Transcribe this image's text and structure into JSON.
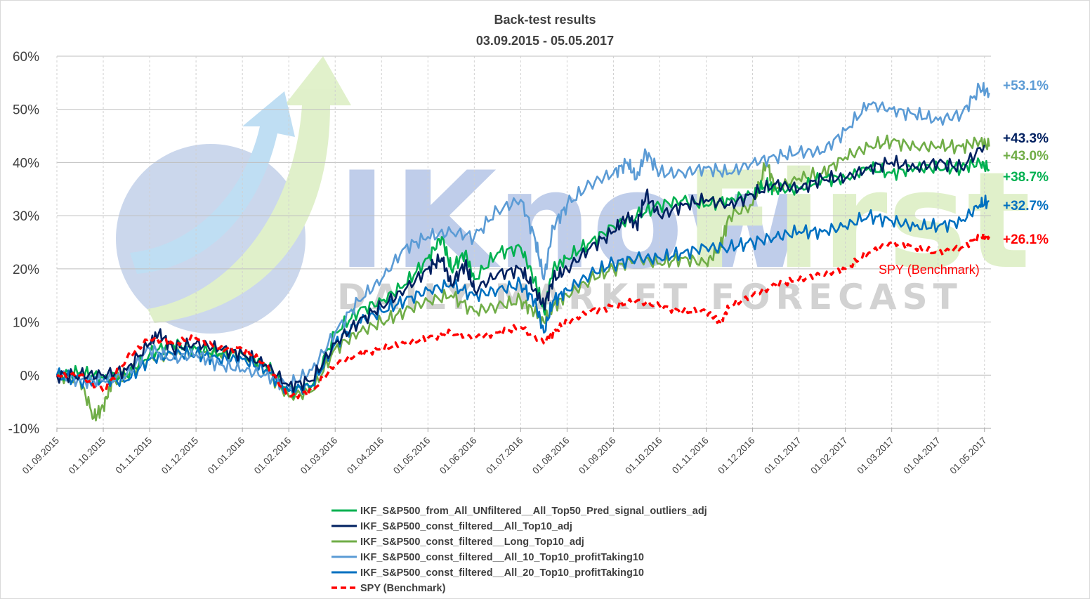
{
  "chart_data": {
    "type": "line",
    "title": "Back-test results",
    "subtitle": "03.09.2015 - 05.05.2017",
    "watermark": {
      "brand_a": "I",
      "brand_b": "Know",
      "brand_c": "First",
      "tagline": "DAILY MARKET FORECAST"
    },
    "x_tick_labels": [
      "01.09.2015",
      "01.10.2015",
      "01.11.2015",
      "01.12.2015",
      "01.01.2016",
      "01.02.2016",
      "01.03.2016",
      "01.04.2016",
      "01.05.2016",
      "01.06.2016",
      "01.07.2016",
      "01.08.2016",
      "01.09.2016",
      "01.10.2016",
      "01.11.2016",
      "01.12.2016",
      "01.01.2017",
      "01.02.2017",
      "01.03.2017",
      "01.04.2017",
      "01.05.2017"
    ],
    "x_range_months": [
      0,
      20.14
    ],
    "y_ticks": [
      -10,
      0,
      10,
      20,
      30,
      40,
      50,
      60
    ],
    "y_tick_labels": [
      "-10%",
      "0%",
      "10%",
      "20%",
      "30%",
      "40%",
      "50%",
      "60%"
    ],
    "ylim": [
      -10,
      60
    ],
    "grid": "horizontal+vertical-dashed",
    "legend_position": "bottom",
    "series": [
      {
        "name": "IKF_S&P500_from_All_UNfiltered__All_Top50_Pred_signal_outliers_adj",
        "color": "#00B050",
        "dashed": false,
        "end_label": "+38.7%",
        "points": [
          [
            0,
            0
          ],
          [
            0.5,
            0.5
          ],
          [
            1.0,
            -0.5
          ],
          [
            1.5,
            0
          ],
          [
            2.0,
            4
          ],
          [
            2.5,
            6
          ],
          [
            3.0,
            5
          ],
          [
            3.5,
            4
          ],
          [
            4.0,
            4
          ],
          [
            4.5,
            2
          ],
          [
            5.0,
            -3
          ],
          [
            5.5,
            -2
          ],
          [
            6.0,
            8
          ],
          [
            6.5,
            12
          ],
          [
            7.0,
            14
          ],
          [
            7.5,
            17
          ],
          [
            8.0,
            22
          ],
          [
            8.3,
            26
          ],
          [
            8.5,
            20
          ],
          [
            8.8,
            23
          ],
          [
            9.0,
            18
          ],
          [
            9.5,
            23
          ],
          [
            10.0,
            24
          ],
          [
            10.3,
            18
          ],
          [
            10.5,
            12
          ],
          [
            10.7,
            20
          ],
          [
            11.0,
            22
          ],
          [
            11.5,
            25
          ],
          [
            12.0,
            28
          ],
          [
            12.5,
            30
          ],
          [
            13.0,
            32
          ],
          [
            13.5,
            33
          ],
          [
            14.0,
            32
          ],
          [
            14.5,
            33
          ],
          [
            15.0,
            34
          ],
          [
            15.3,
            36
          ],
          [
            15.5,
            35
          ],
          [
            16.0,
            35
          ],
          [
            16.5,
            37
          ],
          [
            17.0,
            37
          ],
          [
            17.5,
            39
          ],
          [
            18.0,
            38
          ],
          [
            18.5,
            39
          ],
          [
            19.0,
            39
          ],
          [
            19.5,
            39
          ],
          [
            19.9,
            40
          ],
          [
            20.1,
            38.7
          ]
        ]
      },
      {
        "name": "IKF_S&P500_const_filtered__All_Top10_adj",
        "color": "#002060",
        "dashed": false,
        "end_label": "+43.3%",
        "points": [
          [
            0,
            0
          ],
          [
            0.5,
            0
          ],
          [
            1.0,
            0
          ],
          [
            1.5,
            1
          ],
          [
            2.0,
            6
          ],
          [
            2.2,
            8
          ],
          [
            2.5,
            5
          ],
          [
            3.0,
            6
          ],
          [
            3.5,
            5
          ],
          [
            4.0,
            4
          ],
          [
            4.5,
            2
          ],
          [
            5.0,
            -2
          ],
          [
            5.5,
            -1
          ],
          [
            6.0,
            6
          ],
          [
            6.5,
            10
          ],
          [
            7.0,
            13
          ],
          [
            7.5,
            16
          ],
          [
            8.0,
            20
          ],
          [
            8.3,
            22
          ],
          [
            8.5,
            17
          ],
          [
            8.8,
            21
          ],
          [
            9.0,
            16
          ],
          [
            9.5,
            19
          ],
          [
            10.0,
            20
          ],
          [
            10.3,
            16
          ],
          [
            10.5,
            13
          ],
          [
            10.7,
            18
          ],
          [
            11.0,
            20
          ],
          [
            11.5,
            24
          ],
          [
            12.0,
            27
          ],
          [
            12.3,
            30
          ],
          [
            12.5,
            28
          ],
          [
            12.7,
            34
          ],
          [
            13.0,
            30
          ],
          [
            13.5,
            32
          ],
          [
            14.0,
            33
          ],
          [
            14.5,
            32
          ],
          [
            15.0,
            34
          ],
          [
            15.5,
            36
          ],
          [
            16.0,
            35
          ],
          [
            16.5,
            37
          ],
          [
            17.0,
            37
          ],
          [
            17.5,
            39
          ],
          [
            18.0,
            40
          ],
          [
            18.5,
            39
          ],
          [
            19.0,
            40
          ],
          [
            19.5,
            39
          ],
          [
            20.0,
            43.3
          ]
        ]
      },
      {
        "name": "IKF_S&P500_const_filtered__Long_Top10_adj",
        "color": "#70AD47",
        "dashed": false,
        "end_label": "+43.0%",
        "points": [
          [
            0,
            0
          ],
          [
            0.5,
            -1
          ],
          [
            0.8,
            -8
          ],
          [
            1.0,
            -6
          ],
          [
            1.2,
            -1
          ],
          [
            1.5,
            0
          ],
          [
            2.0,
            3
          ],
          [
            2.5,
            4
          ],
          [
            3.0,
            4
          ],
          [
            3.5,
            4
          ],
          [
            4.0,
            4
          ],
          [
            4.5,
            1
          ],
          [
            5.0,
            -4
          ],
          [
            5.5,
            -3
          ],
          [
            6.0,
            5
          ],
          [
            6.5,
            8
          ],
          [
            7.0,
            10
          ],
          [
            7.5,
            12
          ],
          [
            8.0,
            14
          ],
          [
            8.5,
            15
          ],
          [
            9.0,
            12
          ],
          [
            9.5,
            13
          ],
          [
            10.0,
            14
          ],
          [
            10.3,
            12
          ],
          [
            10.5,
            10
          ],
          [
            10.7,
            13
          ],
          [
            11.0,
            15
          ],
          [
            11.5,
            18
          ],
          [
            12.0,
            20
          ],
          [
            12.5,
            22
          ],
          [
            13.0,
            21
          ],
          [
            13.5,
            22
          ],
          [
            14.0,
            21
          ],
          [
            14.3,
            24
          ],
          [
            14.5,
            30
          ],
          [
            15.0,
            32
          ],
          [
            15.3,
            40
          ],
          [
            15.5,
            35
          ],
          [
            16.0,
            37
          ],
          [
            16.5,
            38
          ],
          [
            17.0,
            41
          ],
          [
            17.5,
            43
          ],
          [
            18.0,
            44
          ],
          [
            18.5,
            43
          ],
          [
            19.0,
            43
          ],
          [
            19.5,
            43
          ],
          [
            19.9,
            44
          ],
          [
            20.1,
            43
          ]
        ]
      },
      {
        "name": "IKF_S&P500_const_filtered__All_10_Top10_profitTaking10",
        "color": "#5B9BD5",
        "dashed": false,
        "end_label": "+53.1%",
        "points": [
          [
            0,
            0
          ],
          [
            0.5,
            -1
          ],
          [
            1.0,
            -1
          ],
          [
            1.5,
            0
          ],
          [
            2.0,
            5
          ],
          [
            2.5,
            3
          ],
          [
            3.0,
            4
          ],
          [
            3.5,
            2
          ],
          [
            4.0,
            1
          ],
          [
            4.5,
            0
          ],
          [
            5.0,
            -2
          ],
          [
            5.5,
            1
          ],
          [
            6.0,
            8
          ],
          [
            6.5,
            14
          ],
          [
            7.0,
            18
          ],
          [
            7.5,
            24
          ],
          [
            8.0,
            26
          ],
          [
            8.5,
            27
          ],
          [
            9.0,
            26
          ],
          [
            9.5,
            31
          ],
          [
            10.0,
            33
          ],
          [
            10.3,
            26
          ],
          [
            10.5,
            18
          ],
          [
            10.7,
            28
          ],
          [
            11.0,
            32
          ],
          [
            11.5,
            36
          ],
          [
            12.0,
            38
          ],
          [
            12.3,
            40
          ],
          [
            12.5,
            37
          ],
          [
            12.7,
            42
          ],
          [
            13.0,
            38
          ],
          [
            13.5,
            38
          ],
          [
            14.0,
            39
          ],
          [
            14.5,
            38
          ],
          [
            15.0,
            40
          ],
          [
            15.5,
            41
          ],
          [
            16.0,
            42
          ],
          [
            16.5,
            42
          ],
          [
            17.0,
            46
          ],
          [
            17.5,
            51
          ],
          [
            18.0,
            50
          ],
          [
            18.5,
            49
          ],
          [
            19.0,
            48
          ],
          [
            19.5,
            49
          ],
          [
            19.9,
            54
          ],
          [
            20.1,
            53.1
          ]
        ]
      },
      {
        "name": "IKF_S&P500_const_filtered__All_20_Top10_profitTaking10",
        "color": "#0070C0",
        "dashed": false,
        "end_label": "+32.7%",
        "points": [
          [
            0,
            0
          ],
          [
            0.5,
            -1
          ],
          [
            1.0,
            -1
          ],
          [
            1.5,
            -1
          ],
          [
            2.0,
            3
          ],
          [
            2.5,
            4
          ],
          [
            3.0,
            4
          ],
          [
            3.5,
            3
          ],
          [
            4.0,
            3
          ],
          [
            4.5,
            1
          ],
          [
            5.0,
            -3
          ],
          [
            5.5,
            -2
          ],
          [
            6.0,
            6
          ],
          [
            6.5,
            10
          ],
          [
            7.0,
            12
          ],
          [
            7.5,
            14
          ],
          [
            8.0,
            16
          ],
          [
            8.5,
            17
          ],
          [
            9.0,
            15
          ],
          [
            9.5,
            16
          ],
          [
            10.0,
            17
          ],
          [
            10.3,
            14
          ],
          [
            10.5,
            8
          ],
          [
            10.7,
            14
          ],
          [
            11.0,
            16
          ],
          [
            11.5,
            19
          ],
          [
            12.0,
            21
          ],
          [
            12.5,
            22
          ],
          [
            13.0,
            22
          ],
          [
            13.5,
            23
          ],
          [
            14.0,
            24
          ],
          [
            14.5,
            24
          ],
          [
            15.0,
            25
          ],
          [
            15.5,
            26
          ],
          [
            16.0,
            27
          ],
          [
            16.5,
            27
          ],
          [
            17.0,
            28
          ],
          [
            17.5,
            30
          ],
          [
            18.0,
            29
          ],
          [
            18.5,
            28
          ],
          [
            19.0,
            28
          ],
          [
            19.5,
            29
          ],
          [
            19.9,
            32
          ],
          [
            20.1,
            32.7
          ]
        ]
      },
      {
        "name": "SPY (Benchmark)",
        "color": "#FF0000",
        "dashed": true,
        "end_label": "+26.1%",
        "inline_label": "SPY (Benchmark)",
        "points": [
          [
            0,
            0
          ],
          [
            0.5,
            0
          ],
          [
            1.0,
            -3
          ],
          [
            1.5,
            3
          ],
          [
            2.0,
            7
          ],
          [
            2.5,
            6
          ],
          [
            3.0,
            7
          ],
          [
            3.5,
            5
          ],
          [
            4.0,
            5
          ],
          [
            4.5,
            2
          ],
          [
            5.0,
            -4
          ],
          [
            5.5,
            -3
          ],
          [
            6.0,
            2
          ],
          [
            6.5,
            4
          ],
          [
            7.0,
            5
          ],
          [
            7.5,
            6
          ],
          [
            8.0,
            7
          ],
          [
            8.5,
            8
          ],
          [
            9.0,
            7
          ],
          [
            9.5,
            8
          ],
          [
            10.0,
            9
          ],
          [
            10.5,
            6
          ],
          [
            10.7,
            8
          ],
          [
            11.0,
            10
          ],
          [
            11.5,
            12
          ],
          [
            12.0,
            13
          ],
          [
            12.5,
            14
          ],
          [
            13.0,
            13
          ],
          [
            13.5,
            12
          ],
          [
            14.0,
            12
          ],
          [
            14.3,
            10
          ],
          [
            14.5,
            13
          ],
          [
            15.0,
            15
          ],
          [
            15.5,
            17
          ],
          [
            16.0,
            18
          ],
          [
            16.5,
            19
          ],
          [
            17.0,
            20
          ],
          [
            17.5,
            23
          ],
          [
            18.0,
            25
          ],
          [
            18.5,
            24
          ],
          [
            19.0,
            23
          ],
          [
            19.5,
            24
          ],
          [
            19.9,
            26
          ],
          [
            20.1,
            26.1
          ]
        ]
      }
    ]
  }
}
